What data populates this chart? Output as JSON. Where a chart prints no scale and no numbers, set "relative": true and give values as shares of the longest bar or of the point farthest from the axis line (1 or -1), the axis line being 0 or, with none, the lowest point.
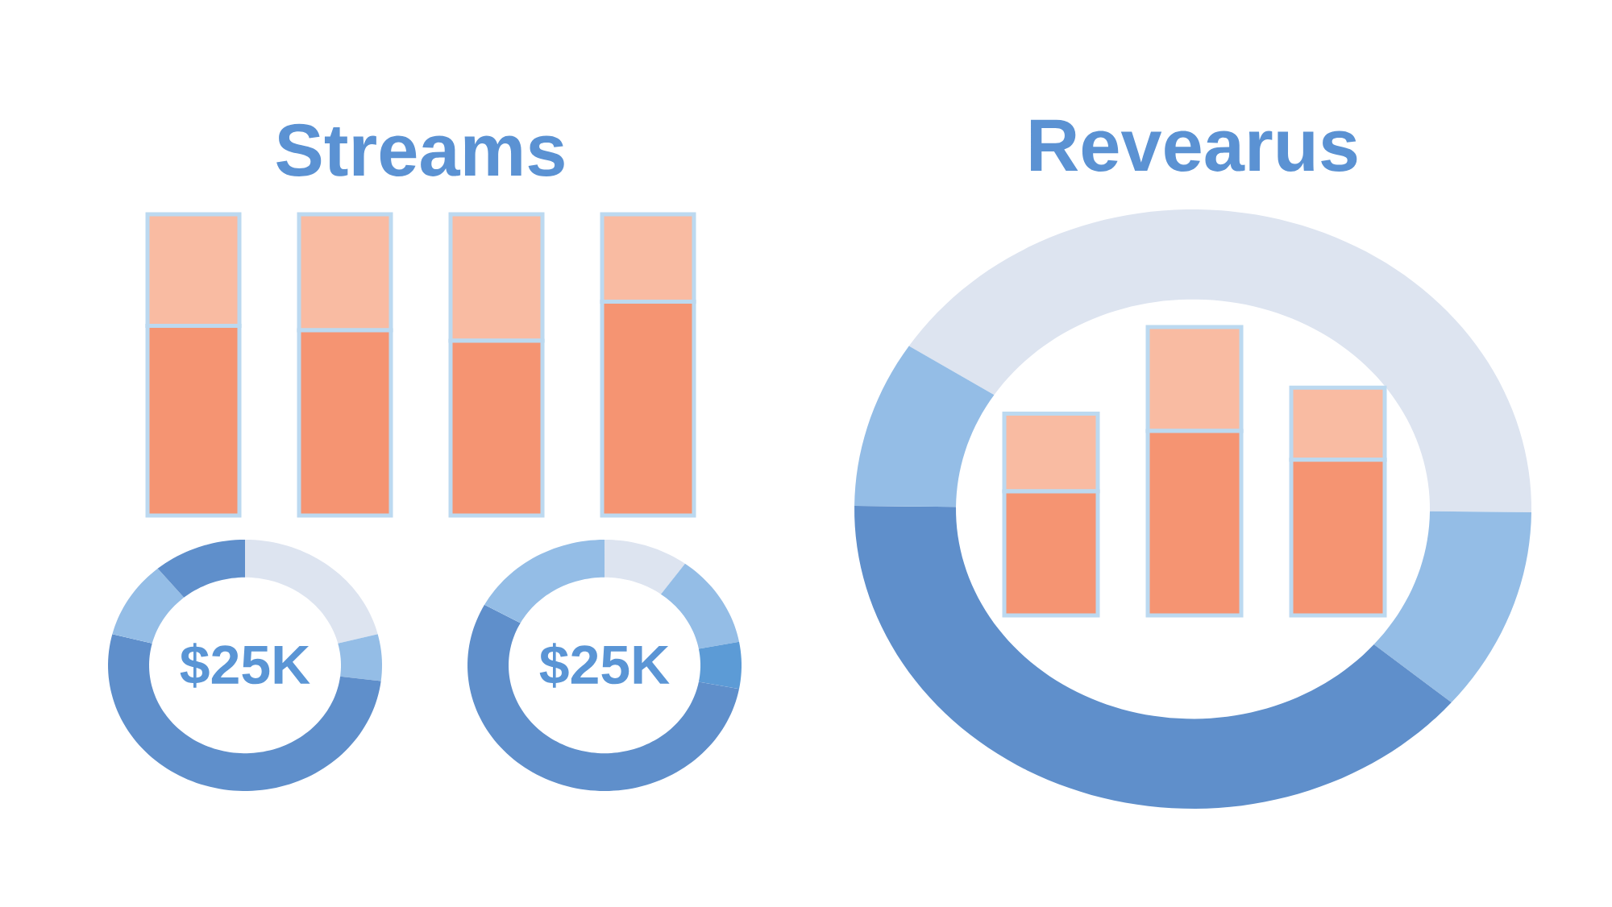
{
  "chart_data": [
    {
      "type": "bar",
      "title": "Streams",
      "categories": [
        null,
        null,
        null,
        null
      ],
      "stacked": true,
      "relative": true,
      "series": [
        {
          "color": "#f59472",
          "values": [
            0.63,
            0.615,
            0.58,
            0.71
          ]
        },
        {
          "color": "#f9bba2",
          "values": [
            0.37,
            0.385,
            0.42,
            0.29
          ]
        }
      ]
    },
    {
      "type": "donut",
      "categories": [
        null,
        null,
        null,
        null,
        null
      ],
      "values": [
        21,
        6,
        52,
        10,
        11
      ],
      "colors": [
        "#dde4f0",
        "#94bde6",
        "#5f8fcb",
        "#94bde6",
        "#5f8fcb"
      ],
      "annotations": [
        "$25K"
      ]
    },
    {
      "type": "donut",
      "categories": [
        null,
        null,
        null,
        null,
        null
      ],
      "values": [
        10,
        12,
        6,
        55,
        17
      ],
      "colors": [
        "#dde4f0",
        "#94bde6",
        "#5c9bd6",
        "#5f8fcb",
        "#94bde6"
      ],
      "annotations": [
        "$25K"
      ]
    },
    {
      "type": "donut",
      "title": "Revearus",
      "categories": [
        null,
        null,
        null,
        null
      ],
      "values": [
        41,
        11,
        39,
        9
      ],
      "colors": [
        "#dde4f0",
        "#94bde6",
        "#5f8fcb",
        "#94bde6"
      ]
    },
    {
      "type": "bar",
      "categories": [
        null,
        null,
        null
      ],
      "stacked": true,
      "relative": true,
      "series": [
        {
          "color": "#f59472",
          "values": [
            0.43,
            0.64,
            0.54
          ]
        },
        {
          "color": "#f9bba2",
          "values": [
            0.27,
            0.36,
            0.25
          ]
        }
      ]
    }
  ]
}
